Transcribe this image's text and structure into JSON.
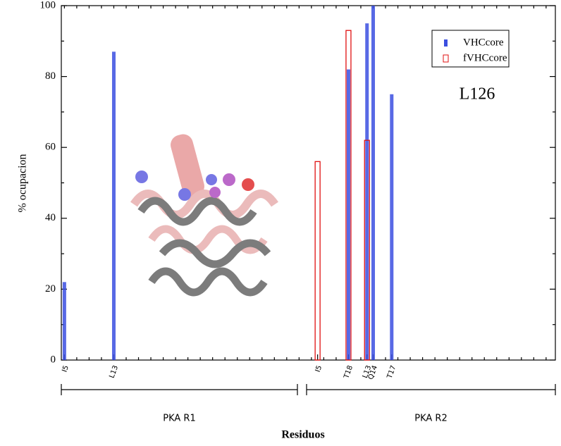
{
  "chart_data": {
    "type": "bar",
    "x_label": "Residuos",
    "y_label": "% ocupacion",
    "annotation": "L126",
    "groups": [
      "PKA R1",
      "PKA R2"
    ],
    "categories": [
      "I5",
      null,
      null,
      null,
      null,
      null,
      null,
      null,
      "L13",
      null,
      null,
      null,
      null,
      null,
      null,
      null,
      null,
      null,
      null,
      null,
      null,
      null,
      null,
      null,
      null,
      null,
      null,
      null,
      null,
      null,
      null,
      null,
      null,
      null,
      null,
      null,
      null,
      null,
      null,
      null,
      null,
      "I5",
      null,
      null,
      null,
      null,
      "T18",
      null,
      null,
      "L13",
      "Q14",
      null,
      null,
      "T17",
      null,
      null,
      null,
      null,
      null,
      null,
      null,
      null,
      null,
      null,
      null,
      null,
      null,
      null,
      null,
      null,
      null,
      null,
      null,
      null,
      null,
      null,
      null,
      null,
      null,
      null
    ],
    "series": [
      {
        "name": "VHCcore",
        "color": "#3b4fe0",
        "values": [
          22,
          null,
          null,
          null,
          null,
          null,
          null,
          null,
          87,
          null,
          null,
          null,
          null,
          null,
          null,
          null,
          null,
          null,
          null,
          null,
          null,
          null,
          null,
          null,
          null,
          null,
          null,
          null,
          null,
          null,
          null,
          null,
          null,
          null,
          null,
          null,
          null,
          null,
          null,
          null,
          null,
          null,
          null,
          null,
          null,
          null,
          82,
          null,
          null,
          95,
          100,
          null,
          null,
          75,
          null,
          null,
          null,
          null,
          null,
          null,
          null,
          null,
          null,
          null,
          null,
          null,
          null,
          null,
          null,
          null,
          null,
          null,
          null,
          null,
          null,
          null,
          null,
          null,
          null,
          null
        ]
      },
      {
        "name": "fVHCcore",
        "color": "#e01010",
        "values": [
          null,
          null,
          null,
          null,
          null,
          null,
          null,
          null,
          null,
          null,
          null,
          null,
          null,
          null,
          null,
          null,
          null,
          null,
          null,
          null,
          null,
          null,
          null,
          null,
          null,
          null,
          null,
          null,
          null,
          null,
          null,
          null,
          null,
          null,
          null,
          null,
          null,
          null,
          null,
          null,
          null,
          56,
          null,
          null,
          null,
          null,
          93,
          null,
          null,
          62,
          null,
          null,
          null,
          null,
          null,
          null,
          null,
          null,
          null,
          null,
          null,
          null,
          null,
          null,
          null,
          null,
          null,
          null,
          null,
          null,
          null,
          null,
          null,
          null,
          null,
          null,
          null,
          null,
          null,
          null
        ]
      }
    ],
    "ylim": [
      0,
      100
    ],
    "yticks": [
      0,
      20,
      40,
      60,
      80,
      100
    ]
  }
}
